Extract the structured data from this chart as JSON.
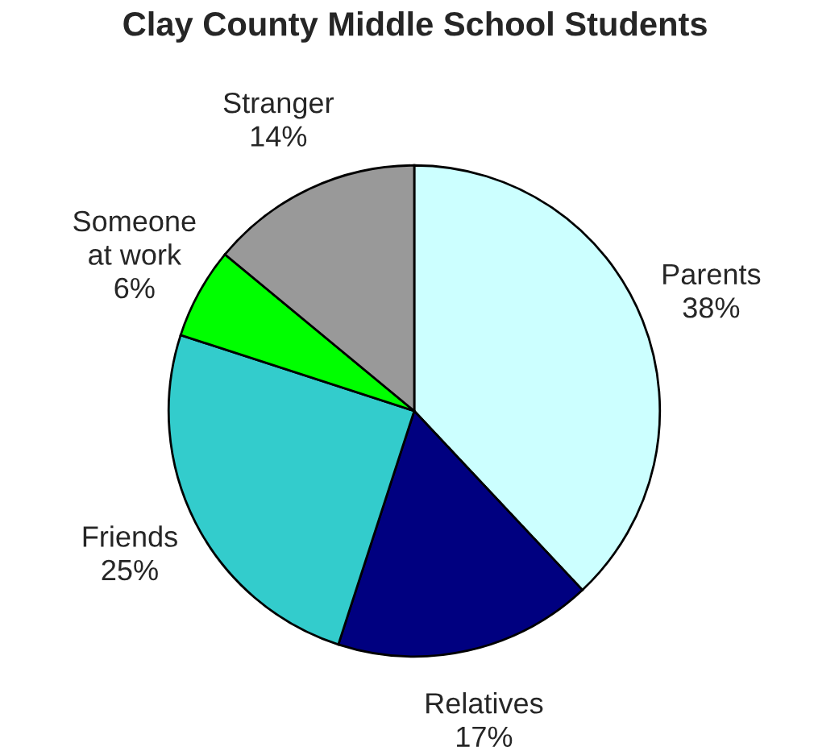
{
  "chart_data": {
    "type": "pie",
    "title": "Clay County Middle School Students",
    "categories": [
      "Parents",
      "Relatives",
      "Friends",
      "Someone\nat work",
      "Stranger"
    ],
    "values": [
      38,
      17,
      25,
      6,
      14
    ],
    "value_labels": [
      "38%",
      "17%",
      "25%",
      "6%",
      "14%"
    ],
    "colors": [
      "#ccffff",
      "#000080",
      "#33cccc",
      "#00ff00",
      "#999999"
    ]
  }
}
